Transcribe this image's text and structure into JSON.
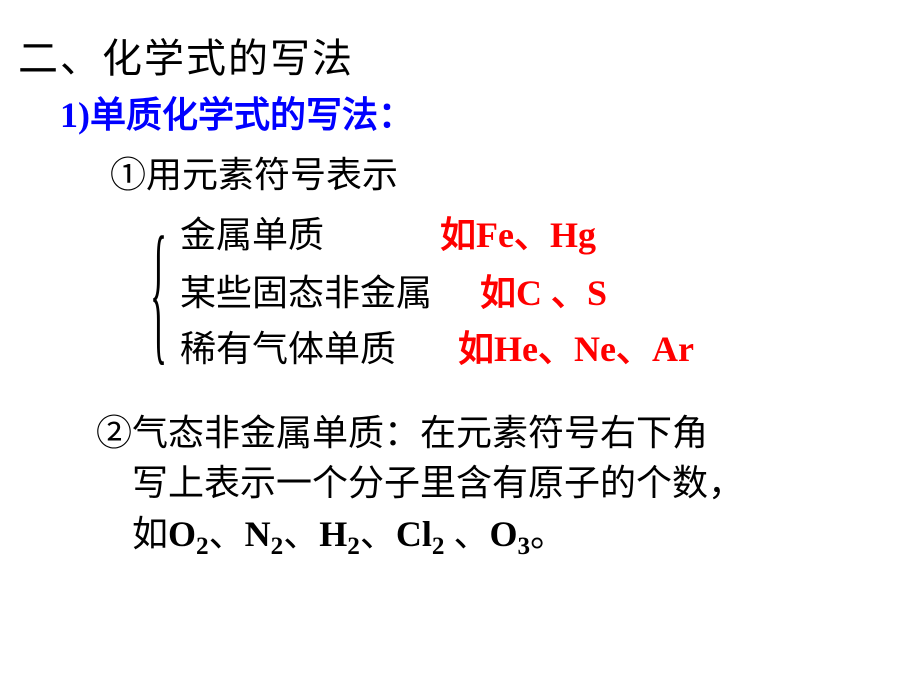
{
  "title": "二、化学式的写法",
  "sub1": "1)单质化学式的写法：",
  "item1": "①用元素符号表示",
  "row1_label": "金属单质",
  "row1_ex_prefix": "如",
  "row1_ex": "Fe、Hg",
  "row2_label": "某些固态非金属",
  "row2_ex_prefix": "如",
  "row2_ex": "C 、S",
  "row3_label": "稀有气体单质",
  "row3_ex_prefix": "如",
  "row3_ex": "He、Ne、Ar",
  "item2_line1": "②气态非金属单质：在元素符号右下角",
  "item2_line2": "写上表示一个分子里含有原子的个数，",
  "item2_line3_prefix": "如",
  "formulas": {
    "f1_base": "O",
    "f1_sub": "2",
    "f2_base": "N",
    "f2_sub": "2",
    "f3_base": "H",
    "f3_sub": "2",
    "f4_base": "Cl",
    "f4_sub": "2",
    "f5_base": "O",
    "f5_sub": "3"
  },
  "sep": "、",
  "sep_sp": " 、",
  "period": "。",
  "colors": {
    "title": "#000000",
    "sub1": "#0000ff",
    "body": "#000000",
    "accent": "#ff0000",
    "background": "#ffffff"
  },
  "fontsizes": {
    "title": 40,
    "sub1": 36,
    "body": 36
  }
}
